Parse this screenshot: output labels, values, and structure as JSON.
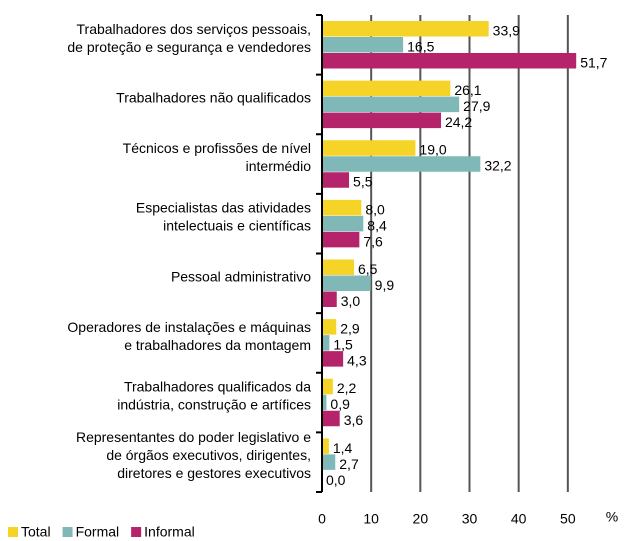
{
  "chart_data": {
    "type": "bar",
    "orientation": "horizontal",
    "categories": [
      "Trabalhadores dos serviços pessoais,\nde proteção e segurança e vendedores",
      "Trabalhadores não qualificados",
      "Técnicos e profissões de nível\nintermédio",
      "Especialistas das atividades\nintelectuais e científicas",
      "Pessoal administrativo",
      "Operadores de instalações e máquinas\ne trabalhadores da montagem",
      "Trabalhadores qualificados da\nindústria, construção e artífices",
      "Representantes do poder legislativo e\nde órgãos executivos, dirigentes,\ndiretores e gestores executivos"
    ],
    "series": [
      {
        "name": "Total",
        "color": "#f5d327",
        "values": [
          33.9,
          26.1,
          19.0,
          8.0,
          6.5,
          2.9,
          2.2,
          1.4
        ],
        "value_labels": [
          "33,9",
          "26,1",
          "19,0",
          "8,0",
          "6,5",
          "2,9",
          "2,2",
          "1,4"
        ]
      },
      {
        "name": "Formal",
        "color": "#80b8b8",
        "values": [
          16.5,
          27.9,
          32.2,
          8.4,
          9.9,
          1.5,
          0.9,
          2.7
        ],
        "value_labels": [
          "16,5",
          "27,9",
          "32,2",
          "8,4",
          "9,9",
          "1,5",
          "0,9",
          "2,7"
        ]
      },
      {
        "name": "Informal",
        "color": "#b5236b",
        "values": [
          51.7,
          24.2,
          5.5,
          7.6,
          3.0,
          4.3,
          3.6,
          0.0
        ],
        "value_labels": [
          "51,7",
          "24,2",
          "5,5",
          "7,6",
          "3,0",
          "4,3",
          "3,6",
          "0,0"
        ]
      }
    ],
    "xlabel": "%",
    "xlim": [
      0,
      60
    ],
    "xticks": [
      0,
      10,
      20,
      30,
      40,
      50
    ],
    "grid": true,
    "legend": "bottom-left"
  }
}
